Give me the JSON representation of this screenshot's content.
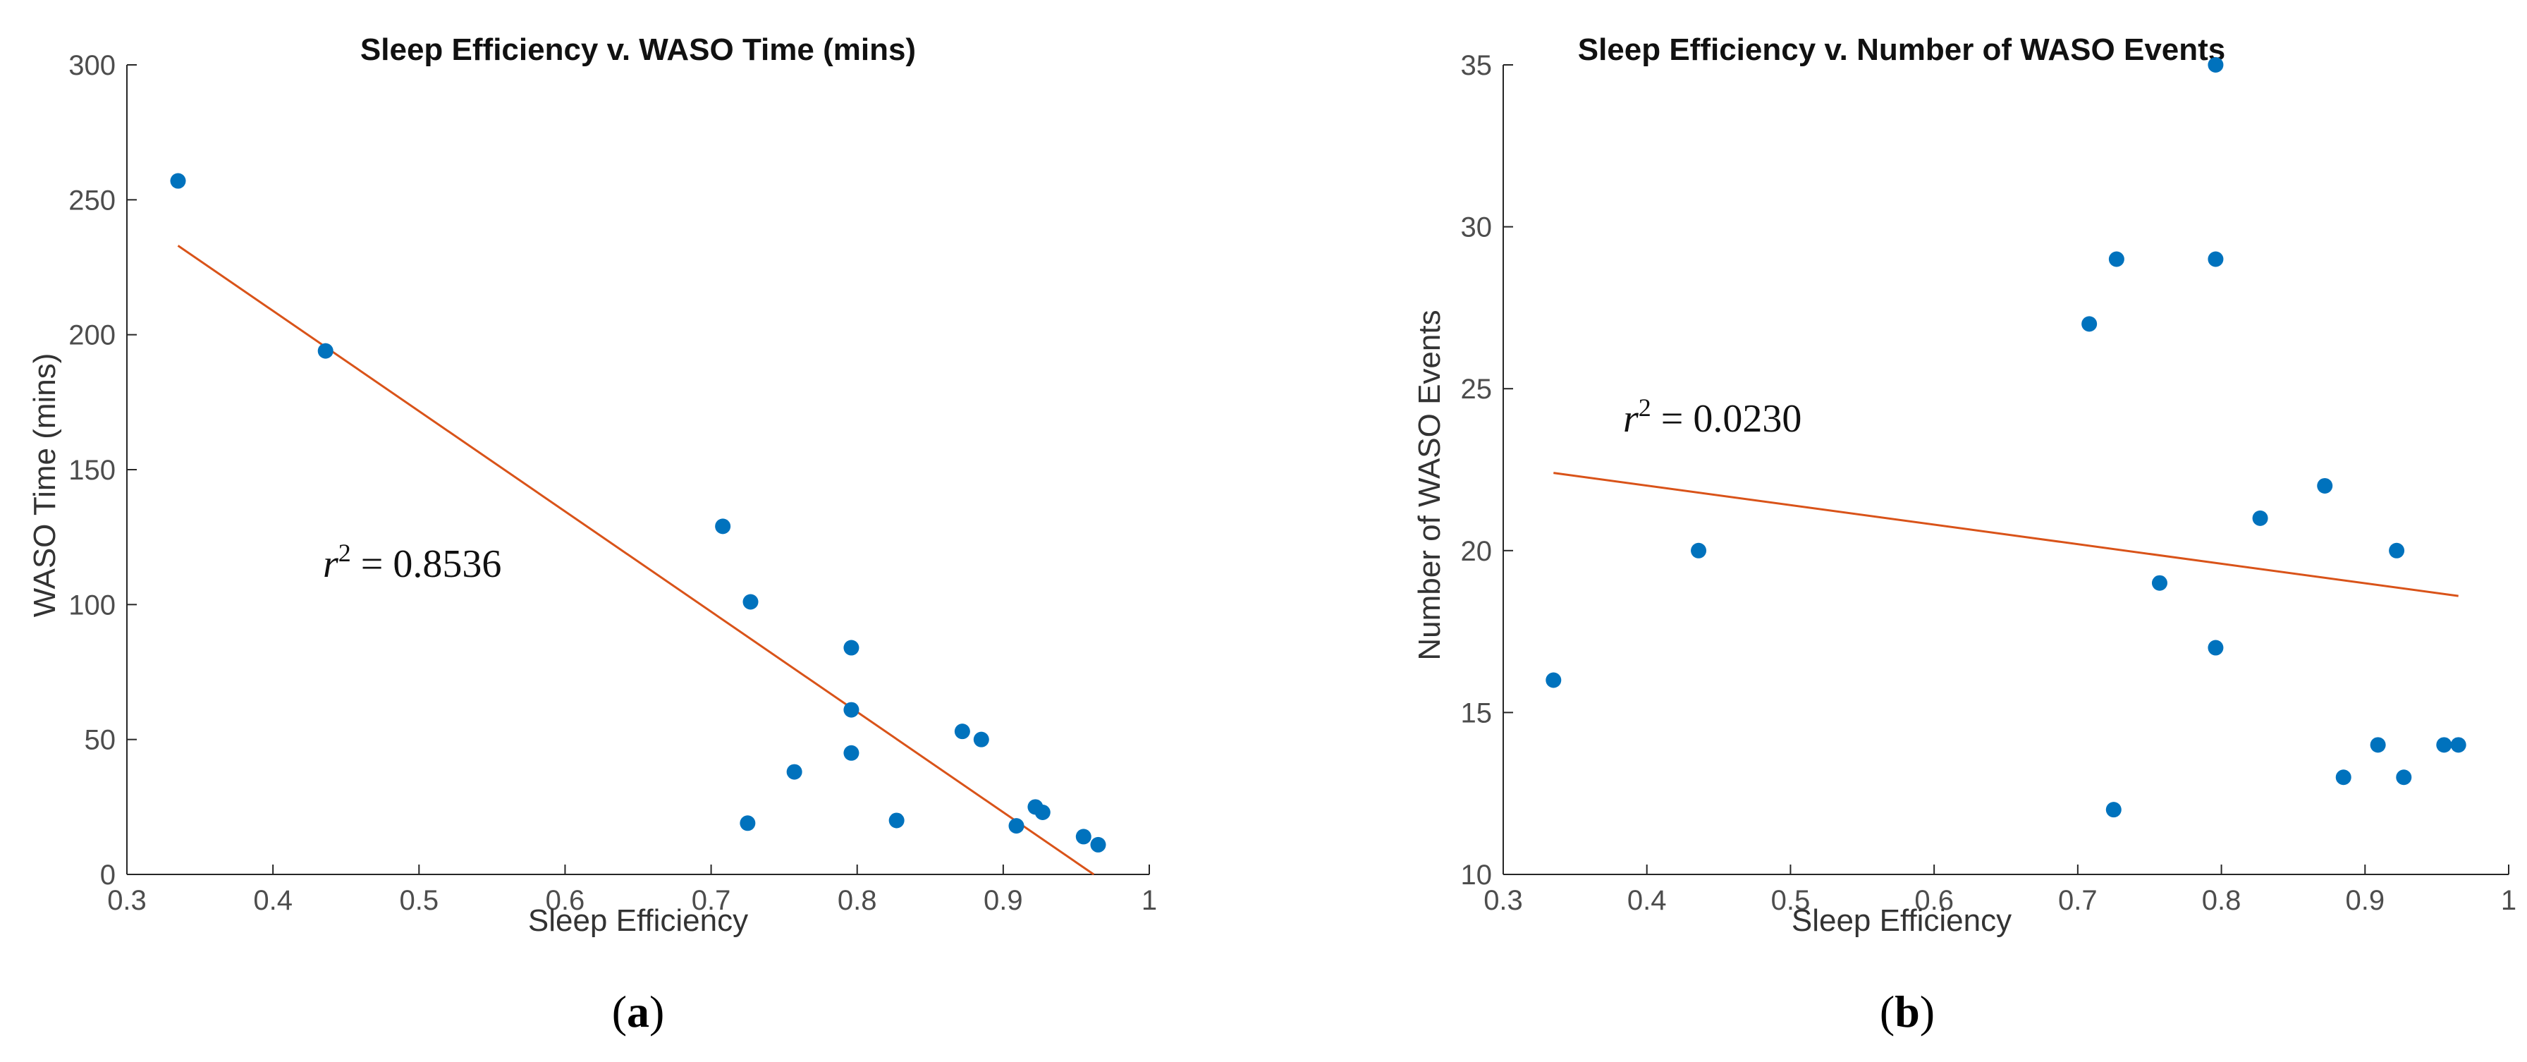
{
  "chart_data": [
    {
      "type": "scatter",
      "title": "Sleep Efficiency v. WASO Time (mins)",
      "xlabel": "Sleep Efficiency",
      "ylabel": "WASO Time (mins)",
      "xlim": [
        0.3,
        1
      ],
      "ylim": [
        0,
        300
      ],
      "xticks": [
        "0.3",
        "0.4",
        "0.5",
        "0.6",
        "0.7",
        "0.8",
        "0.9",
        "1"
      ],
      "yticks": [
        "0",
        "50",
        "100",
        "150",
        "200",
        "250",
        "300"
      ],
      "points": [
        {
          "x": 0.335,
          "y": 257
        },
        {
          "x": 0.436,
          "y": 194
        },
        {
          "x": 0.708,
          "y": 129
        },
        {
          "x": 0.727,
          "y": 101
        },
        {
          "x": 0.725,
          "y": 19
        },
        {
          "x": 0.757,
          "y": 38
        },
        {
          "x": 0.796,
          "y": 84
        },
        {
          "x": 0.796,
          "y": 61
        },
        {
          "x": 0.796,
          "y": 45
        },
        {
          "x": 0.827,
          "y": 20
        },
        {
          "x": 0.872,
          "y": 53
        },
        {
          "x": 0.885,
          "y": 50
        },
        {
          "x": 0.909,
          "y": 18
        },
        {
          "x": 0.922,
          "y": 25
        },
        {
          "x": 0.927,
          "y": 23
        },
        {
          "x": 0.955,
          "y": 14
        },
        {
          "x": 0.965,
          "y": 11
        }
      ],
      "fit_line": {
        "x": [
          0.335,
          0.962
        ],
        "y": [
          233,
          0
        ]
      },
      "r_squared": "0.8536",
      "point_color": "#0072bd",
      "line_color": "#d95319"
    },
    {
      "type": "scatter",
      "title": "Sleep Efficiency v. Number of WASO Events",
      "xlabel": "Sleep Efficiency",
      "ylabel": "Number of WASO Events",
      "xlim": [
        0.3,
        1
      ],
      "ylim": [
        10,
        35
      ],
      "xticks": [
        "0.3",
        "0.4",
        "0.5",
        "0.6",
        "0.7",
        "0.8",
        "0.9",
        "1"
      ],
      "yticks": [
        "10",
        "15",
        "20",
        "25",
        "30",
        "35"
      ],
      "points": [
        {
          "x": 0.335,
          "y": 16
        },
        {
          "x": 0.436,
          "y": 20
        },
        {
          "x": 0.708,
          "y": 27
        },
        {
          "x": 0.727,
          "y": 29
        },
        {
          "x": 0.725,
          "y": 12
        },
        {
          "x": 0.757,
          "y": 19
        },
        {
          "x": 0.796,
          "y": 35
        },
        {
          "x": 0.796,
          "y": 29
        },
        {
          "x": 0.796,
          "y": 17
        },
        {
          "x": 0.827,
          "y": 21
        },
        {
          "x": 0.872,
          "y": 22
        },
        {
          "x": 0.885,
          "y": 13
        },
        {
          "x": 0.909,
          "y": 14
        },
        {
          "x": 0.922,
          "y": 20
        },
        {
          "x": 0.927,
          "y": 13
        },
        {
          "x": 0.955,
          "y": 14
        },
        {
          "x": 0.965,
          "y": 14
        }
      ],
      "fit_line": {
        "x": [
          0.335,
          0.965
        ],
        "y": [
          22.4,
          18.6
        ]
      },
      "r_squared": "0.0230",
      "point_color": "#0072bd",
      "line_color": "#d95319"
    }
  ],
  "captions": {
    "a": {
      "open": "(",
      "letter": "a",
      "close": ")"
    },
    "b": {
      "open": "(",
      "letter": "b",
      "close": ")"
    }
  }
}
